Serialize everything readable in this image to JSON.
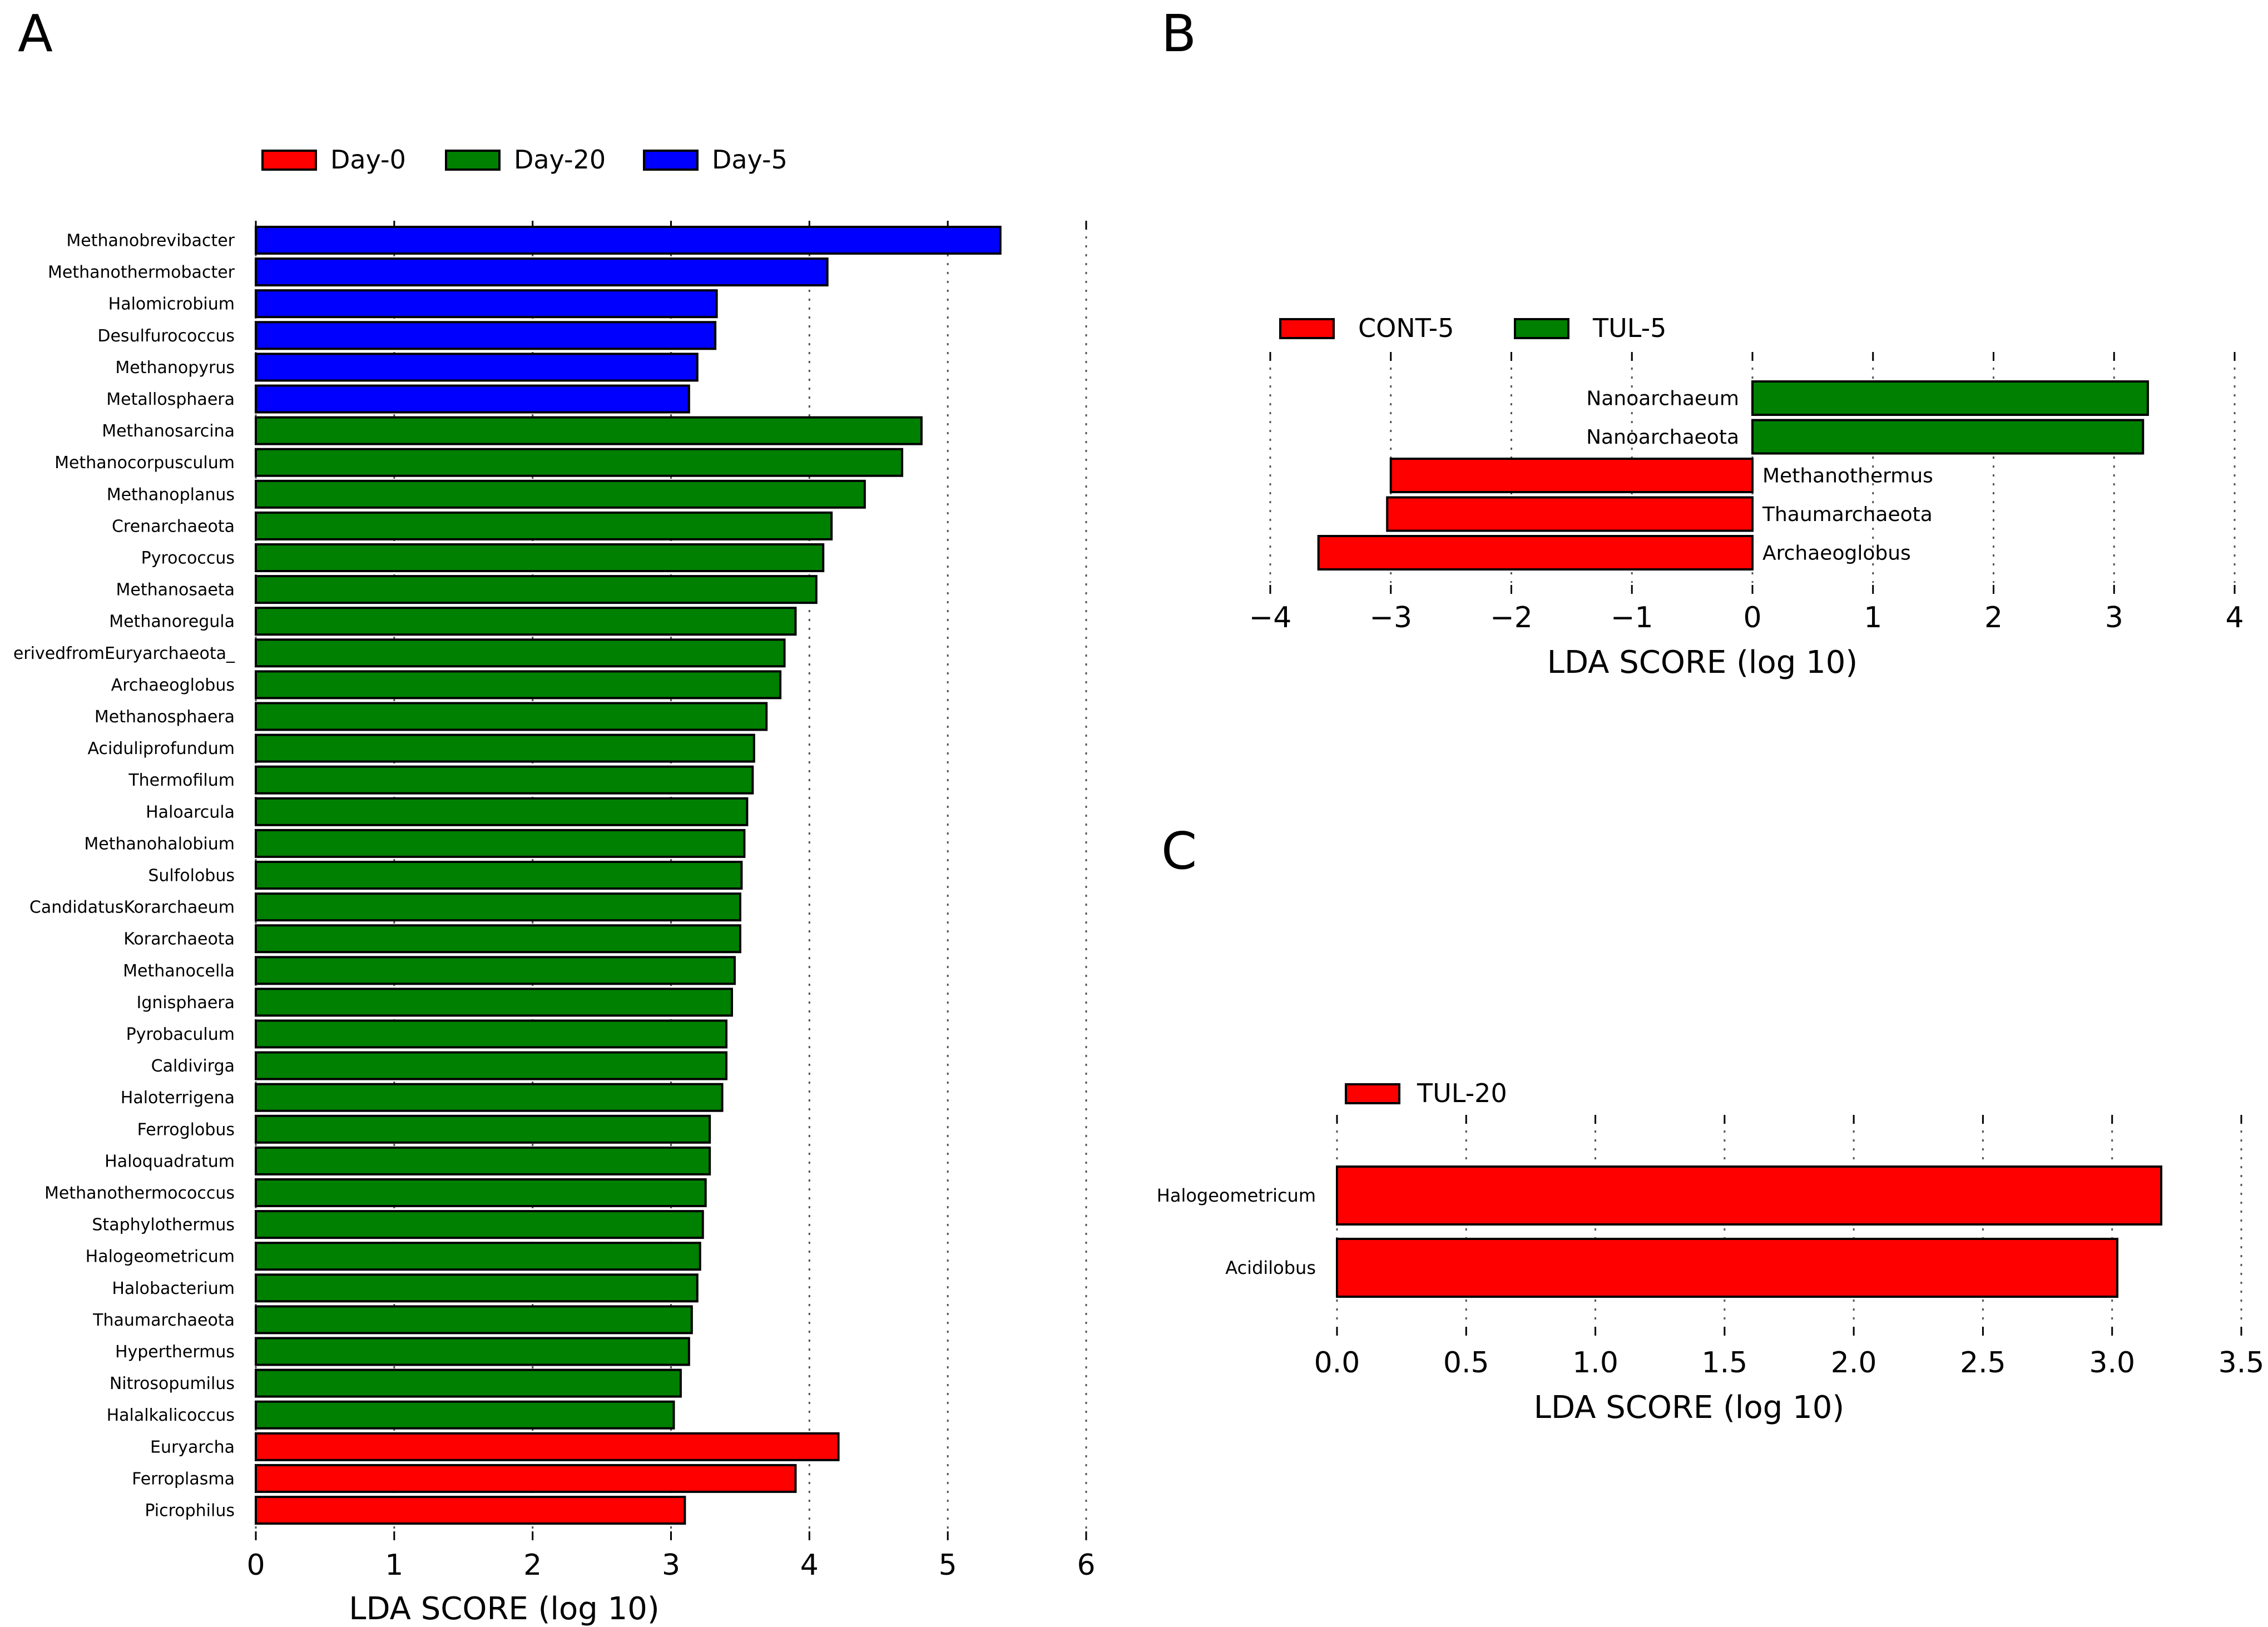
{
  "colors": {
    "red": "#ff0000",
    "green": "#008000",
    "blue": "#0000ff"
  },
  "chart_data": [
    {
      "panel": "A",
      "type": "bar",
      "orientation": "horizontal",
      "xlabel": "LDA SCORE (log 10)",
      "xlim": [
        0,
        6
      ],
      "xticks": [
        "0",
        "1",
        "2",
        "3",
        "4",
        "5",
        "6"
      ],
      "grid": true,
      "legend_placement": "top-left",
      "legend": [
        {
          "name": "Day-0",
          "color": "#ff0000"
        },
        {
          "name": "Day-20",
          "color": "#008000"
        },
        {
          "name": "Day-5",
          "color": "#0000ff"
        }
      ],
      "bars": [
        {
          "label": "Methanobrevibacter",
          "value": 5.38,
          "group": "Day-5"
        },
        {
          "label": "Methanothermobacter",
          "value": 4.13,
          "group": "Day-5"
        },
        {
          "label": "Halomicrobium",
          "value": 3.33,
          "group": "Day-5"
        },
        {
          "label": "Desulfurococcus",
          "value": 3.32,
          "group": "Day-5"
        },
        {
          "label": "Methanopyrus",
          "value": 3.19,
          "group": "Day-5"
        },
        {
          "label": "Metallosphaera",
          "value": 3.13,
          "group": "Day-5"
        },
        {
          "label": "Methanosarcina",
          "value": 4.81,
          "group": "Day-20"
        },
        {
          "label": "Methanocorpusculum",
          "value": 4.67,
          "group": "Day-20"
        },
        {
          "label": "Methanoplanus",
          "value": 4.4,
          "group": "Day-20"
        },
        {
          "label": "Crenarchaeota",
          "value": 4.16,
          "group": "Day-20"
        },
        {
          "label": "Pyrococcus",
          "value": 4.1,
          "group": "Day-20"
        },
        {
          "label": "Methanosaeta",
          "value": 4.05,
          "group": "Day-20"
        },
        {
          "label": "Methanoregula",
          "value": 3.9,
          "group": "Day-20"
        },
        {
          "label": "erivedfromEuryarchaeota_",
          "value": 3.82,
          "group": "Day-20"
        },
        {
          "label": "Archaeoglobus",
          "value": 3.79,
          "group": "Day-20"
        },
        {
          "label": "Methanosphaera",
          "value": 3.69,
          "group": "Day-20"
        },
        {
          "label": "Aciduliprofundum",
          "value": 3.6,
          "group": "Day-20"
        },
        {
          "label": "Thermofilum",
          "value": 3.59,
          "group": "Day-20"
        },
        {
          "label": "Haloarcula",
          "value": 3.55,
          "group": "Day-20"
        },
        {
          "label": "Methanohalobium",
          "value": 3.53,
          "group": "Day-20"
        },
        {
          "label": "Sulfolobus",
          "value": 3.51,
          "group": "Day-20"
        },
        {
          "label": "CandidatusKorarchaeum",
          "value": 3.5,
          "group": "Day-20"
        },
        {
          "label": "Korarchaeota",
          "value": 3.5,
          "group": "Day-20"
        },
        {
          "label": "Methanocella",
          "value": 3.46,
          "group": "Day-20"
        },
        {
          "label": "Ignisphaera",
          "value": 3.44,
          "group": "Day-20"
        },
        {
          "label": "Pyrobaculum",
          "value": 3.4,
          "group": "Day-20"
        },
        {
          "label": "Caldivirga",
          "value": 3.4,
          "group": "Day-20"
        },
        {
          "label": "Haloterrigena",
          "value": 3.37,
          "group": "Day-20"
        },
        {
          "label": "Ferroglobus",
          "value": 3.28,
          "group": "Day-20"
        },
        {
          "label": "Haloquadratum",
          "value": 3.28,
          "group": "Day-20"
        },
        {
          "label": "Methanothermococcus",
          "value": 3.25,
          "group": "Day-20"
        },
        {
          "label": "Staphylothermus",
          "value": 3.23,
          "group": "Day-20"
        },
        {
          "label": "Halogeometricum",
          "value": 3.21,
          "group": "Day-20"
        },
        {
          "label": "Halobacterium",
          "value": 3.19,
          "group": "Day-20"
        },
        {
          "label": "Thaumarchaeota",
          "value": 3.15,
          "group": "Day-20"
        },
        {
          "label": "Hyperthermus",
          "value": 3.13,
          "group": "Day-20"
        },
        {
          "label": "Nitrosopumilus",
          "value": 3.07,
          "group": "Day-20"
        },
        {
          "label": "Halalkalicoccus",
          "value": 3.02,
          "group": "Day-20"
        },
        {
          "label": "Euryarcha",
          "value": 4.21,
          "group": "Day-0"
        },
        {
          "label": "Ferroplasma",
          "value": 3.9,
          "group": "Day-0"
        },
        {
          "label": "Picrophilus",
          "value": 3.1,
          "group": "Day-0"
        }
      ]
    },
    {
      "panel": "B",
      "type": "bar",
      "orientation": "horizontal",
      "xlabel": "LDA SCORE (log 10)",
      "xlim": [
        -4,
        4
      ],
      "xticks": [
        "−4",
        "−3",
        "−2",
        "−1",
        "0",
        "1",
        "2",
        "3",
        "4"
      ],
      "grid": true,
      "legend_placement": "top-left",
      "legend": [
        {
          "name": "CONT-5",
          "color": "#ff0000"
        },
        {
          "name": "TUL-5",
          "color": "#008000"
        }
      ],
      "bars": [
        {
          "label": "Nanoarchaeum",
          "value": 3.28,
          "group": "TUL-5"
        },
        {
          "label": "Nanoarchaeota",
          "value": 3.24,
          "group": "TUL-5"
        },
        {
          "label": "Methanothermus",
          "value": -3.0,
          "group": "CONT-5"
        },
        {
          "label": "Thaumarchaeota",
          "value": -3.03,
          "group": "CONT-5"
        },
        {
          "label": "Archaeoglobus",
          "value": -3.6,
          "group": "CONT-5"
        }
      ]
    },
    {
      "panel": "C",
      "type": "bar",
      "orientation": "horizontal",
      "xlabel": "LDA SCORE (log 10)",
      "xlim": [
        0,
        3.5
      ],
      "xticks": [
        "0.0",
        "0.5",
        "1.0",
        "1.5",
        "2.0",
        "2.5",
        "3.0",
        "3.5"
      ],
      "grid": true,
      "legend_placement": "top-left",
      "legend": [
        {
          "name": "TUL-20",
          "color": "#ff0000"
        }
      ],
      "bars": [
        {
          "label": "Halogeometricum",
          "value": 3.19,
          "group": "TUL-20"
        },
        {
          "label": "Acidilobus",
          "value": 3.02,
          "group": "TUL-20"
        }
      ]
    }
  ]
}
